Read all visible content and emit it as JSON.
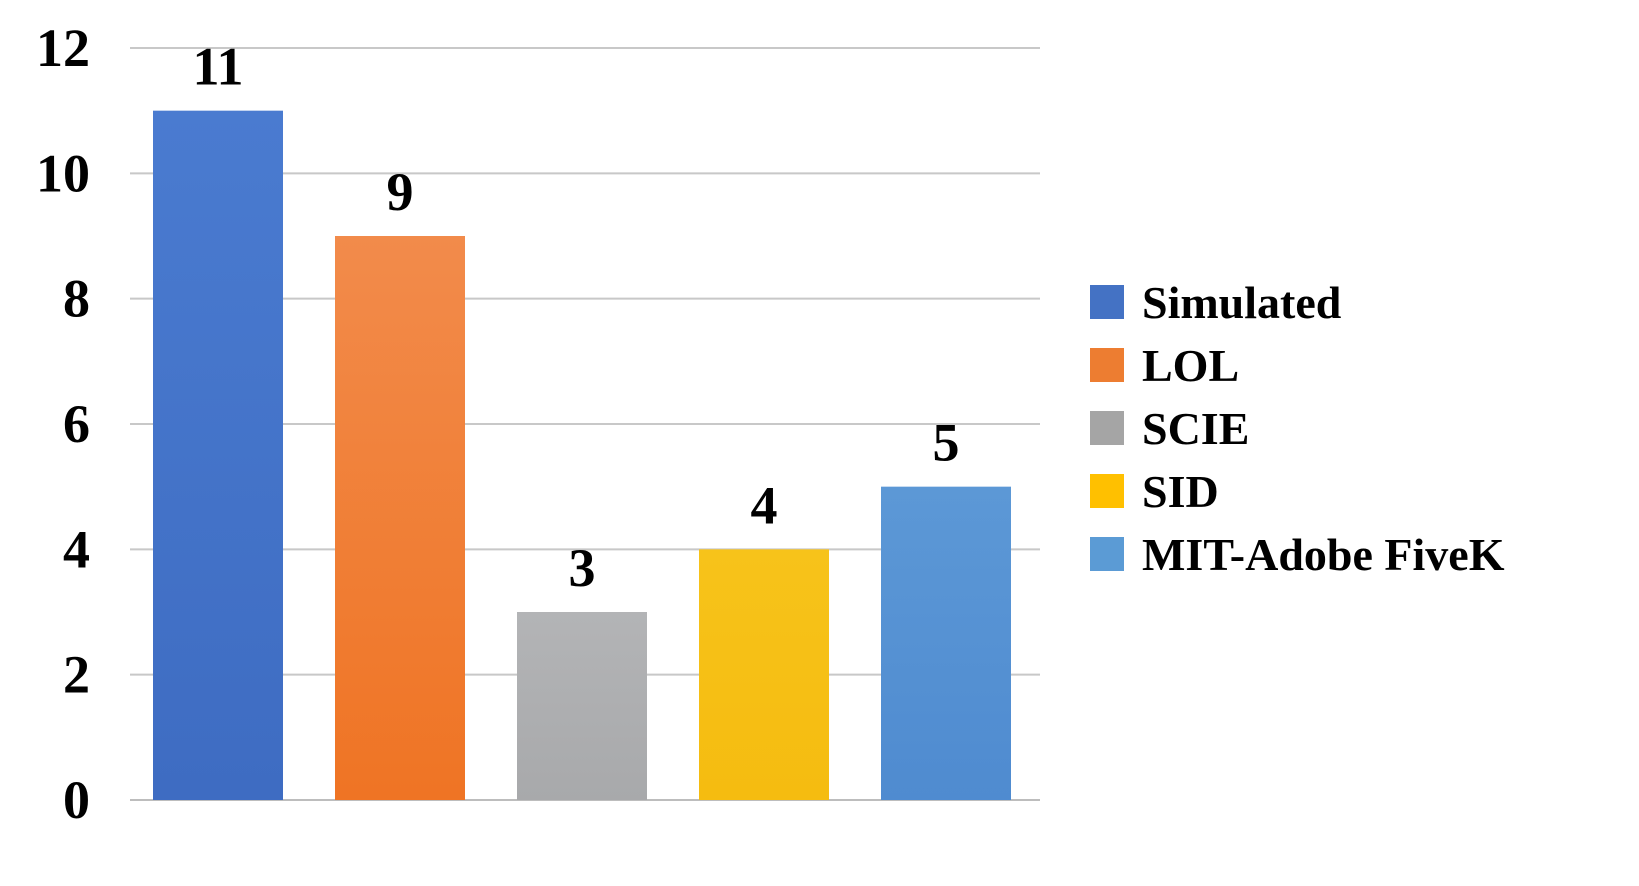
{
  "chart_data": {
    "type": "bar",
    "categories": [
      "Simulated",
      "LOL",
      "SCIE",
      "SID",
      "MIT-Adobe FiveK"
    ],
    "values": [
      11,
      9,
      3,
      4,
      5
    ],
    "data_labels": [
      "11",
      "9",
      "3",
      "4",
      "5"
    ],
    "colors": [
      "#4472C4",
      "#ED7D31",
      "#A5A5A5",
      "#FFC000",
      "#5B9BD5"
    ],
    "title": "",
    "xlabel": "",
    "ylabel": "",
    "ylim": [
      0,
      12
    ],
    "yticks": [
      0,
      2,
      4,
      6,
      8,
      10,
      12
    ],
    "ytick_labels": [
      "0",
      "2",
      "4",
      "6",
      "8",
      "10",
      "12"
    ],
    "grid": true,
    "legend": {
      "position": "right",
      "entries": [
        "Simulated",
        "LOL",
        "SCIE",
        "SID",
        "MIT-Adobe FiveK"
      ]
    }
  }
}
